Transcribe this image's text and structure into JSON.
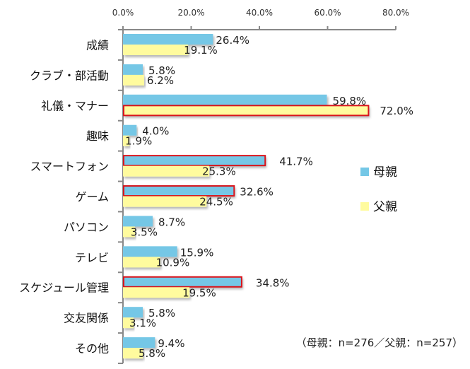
{
  "chart_data": {
    "type": "bar",
    "orientation": "horizontal",
    "title": "",
    "xlabel": "",
    "ylabel": "",
    "xlim": [
      0,
      80
    ],
    "x_ticks": [
      0,
      20,
      40,
      60,
      80
    ],
    "x_tick_labels": [
      "0.0%",
      "20.0%",
      "40.0%",
      "60.0%",
      "80.0%"
    ],
    "grid": false,
    "categories": [
      "成績",
      "クラブ・部活動",
      "礼儀・マナー",
      "趣味",
      "スマートフォン",
      "ゲーム",
      "パソコン",
      "テレビ",
      "スケジュール管理",
      "交友関係",
      "その他"
    ],
    "series": [
      {
        "name": "母親",
        "color": "#74C7E6",
        "values": [
          26.4,
          5.8,
          59.8,
          4.0,
          41.7,
          32.6,
          8.7,
          15.9,
          34.8,
          5.8,
          9.4
        ],
        "labels": [
          "26.4%",
          "5.8%",
          "59.8%",
          "4.0%",
          "41.7%",
          "32.6%",
          "8.7%",
          "15.9%",
          "34.8%",
          "5.8%",
          "9.4%"
        ],
        "highlighted": [
          false,
          false,
          false,
          false,
          true,
          true,
          false,
          false,
          true,
          false,
          false
        ]
      },
      {
        "name": "父親",
        "color": "#FFFB9E",
        "values": [
          19.1,
          6.2,
          72.0,
          1.9,
          25.3,
          24.5,
          3.5,
          10.9,
          19.5,
          3.1,
          5.8
        ],
        "labels": [
          "19.1%",
          "6.2%",
          "72.0%",
          "1.9%",
          "25.3%",
          "24.5%",
          "3.5%",
          "10.9%",
          "19.5%",
          "3.1%",
          "5.8%"
        ],
        "highlighted": [
          false,
          false,
          true,
          false,
          false,
          false,
          false,
          false,
          false,
          false,
          false
        ]
      }
    ],
    "legend": {
      "placement": "right",
      "entries": [
        "母親",
        "父親"
      ]
    },
    "highlight_color": "#D9141B",
    "annotation": "（母親：n=276／父親：n=257）"
  }
}
